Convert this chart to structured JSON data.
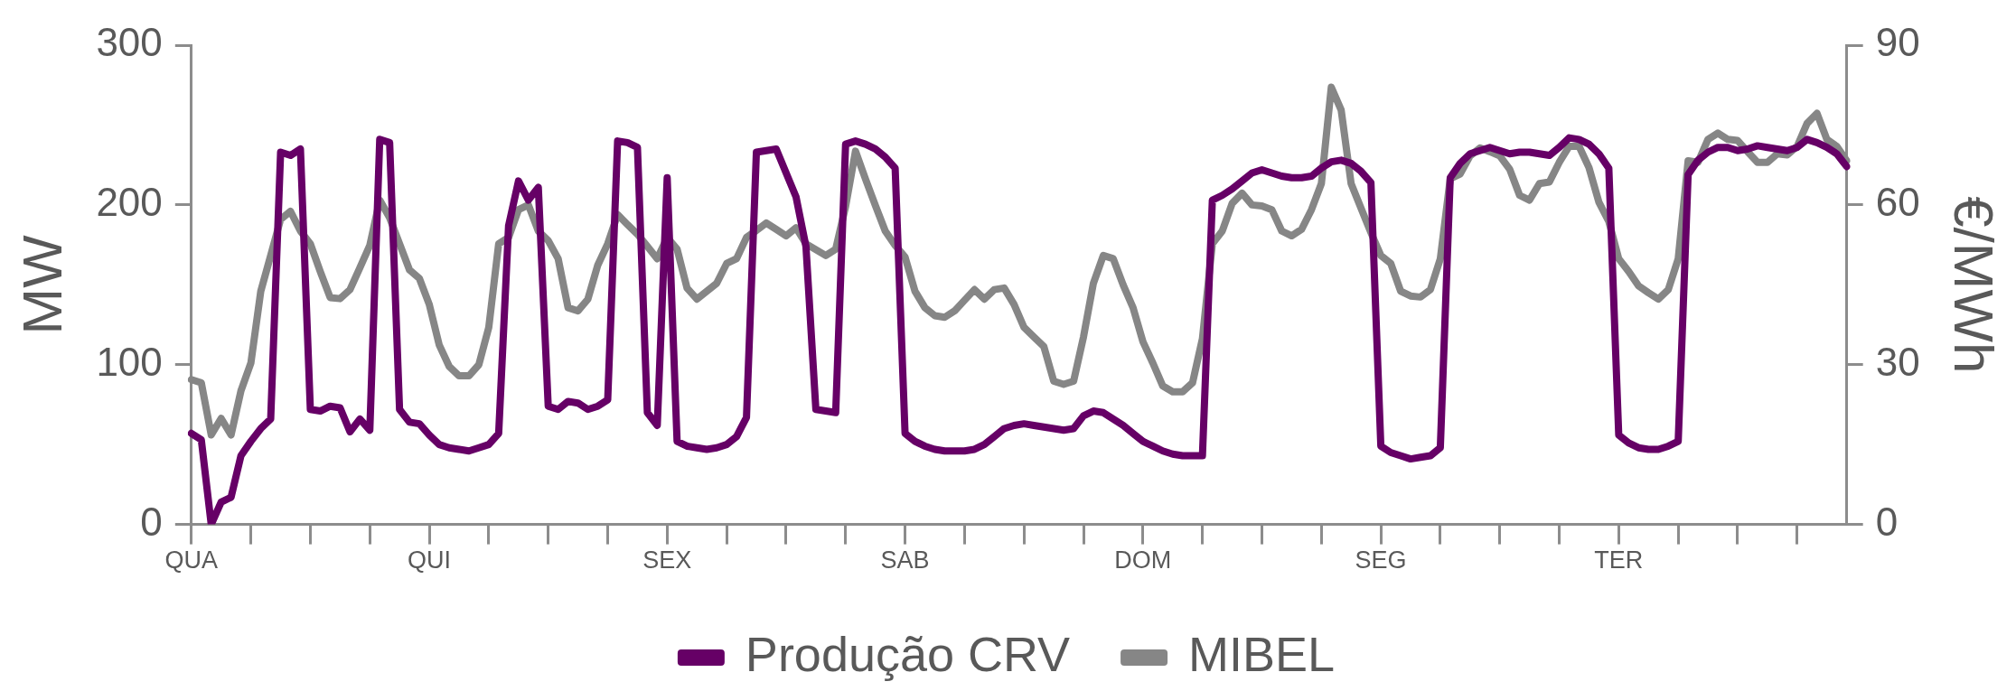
{
  "chart_data": {
    "type": "line",
    "ylabel": "MW",
    "y2label": "€/MWh",
    "legend": "bottom",
    "grid": false,
    "marker": "none",
    "line_style": "solid",
    "categories": [
      "QUA",
      null,
      null,
      null,
      null,
      null,
      null,
      null,
      null,
      null,
      null,
      null,
      null,
      null,
      null,
      null,
      null,
      null,
      null,
      null,
      null,
      null,
      null,
      null,
      "QUI",
      null,
      null,
      null,
      null,
      null,
      null,
      null,
      null,
      null,
      null,
      null,
      null,
      null,
      null,
      null,
      null,
      null,
      null,
      null,
      null,
      null,
      null,
      null,
      "SEX",
      null,
      null,
      null,
      null,
      null,
      null,
      null,
      null,
      null,
      null,
      null,
      null,
      null,
      null,
      null,
      null,
      null,
      null,
      null,
      null,
      null,
      null,
      null,
      "SAB",
      null,
      null,
      null,
      null,
      null,
      null,
      null,
      null,
      null,
      null,
      null,
      null,
      null,
      null,
      null,
      null,
      null,
      null,
      null,
      null,
      null,
      null,
      null,
      "DOM",
      null,
      null,
      null,
      null,
      null,
      null,
      null,
      null,
      null,
      null,
      null,
      null,
      null,
      null,
      null,
      null,
      null,
      null,
      null,
      null,
      null,
      null,
      null,
      "SEG",
      null,
      null,
      null,
      null,
      null,
      null,
      null,
      null,
      null,
      null,
      null,
      null,
      null,
      null,
      null,
      null,
      null,
      null,
      null,
      null,
      null,
      null,
      null,
      "TER",
      null,
      null,
      null,
      null,
      null,
      null,
      null,
      null,
      null,
      null,
      null,
      null,
      null,
      null,
      null,
      null,
      null,
      null,
      null,
      null,
      null,
      null,
      null
    ],
    "ylim": [
      0,
      300
    ],
    "yticks": [
      0,
      100,
      200,
      300
    ],
    "y2lim": [
      0,
      90
    ],
    "y2ticks": [
      0,
      30,
      60,
      90
    ],
    "series": [
      {
        "name": "Produção CRV",
        "color": "#660066",
        "values": [
          57,
          53,
          0,
          14,
          17,
          43,
          52,
          60,
          66,
          233,
          231,
          235,
          72,
          71,
          74,
          73,
          58,
          66,
          59,
          241,
          239,
          72,
          64,
          63,
          56,
          50,
          48,
          47,
          46,
          48,
          50,
          57,
          187,
          215,
          203,
          211,
          74,
          72,
          77,
          76,
          72,
          74,
          78,
          240,
          239,
          236,
          70,
          62,
          217,
          52,
          49,
          48,
          47,
          48,
          50,
          55,
          67,
          233,
          234,
          235,
          220,
          205,
          174,
          72,
          71,
          70,
          238,
          240,
          238,
          235,
          230,
          223,
          57,
          52,
          49,
          47,
          46,
          46,
          46,
          47,
          50,
          55,
          60,
          62,
          63,
          62,
          61,
          60,
          59,
          60,
          68,
          71,
          70,
          66,
          62,
          57,
          52,
          49,
          46,
          44,
          43,
          43,
          43,
          203,
          206,
          210,
          215,
          220,
          222,
          220,
          218,
          217,
          217,
          218,
          223,
          227,
          228,
          226,
          221,
          214,
          49,
          45,
          43,
          41,
          42,
          43,
          48,
          217,
          226,
          232,
          234,
          236,
          234,
          232,
          233,
          233,
          232,
          231,
          236,
          242,
          241,
          238,
          232,
          223,
          56,
          51,
          48,
          47,
          47,
          49,
          52,
          219,
          228,
          233,
          236,
          236,
          234,
          235,
          237,
          236,
          235,
          234,
          236,
          241,
          239,
          236,
          232,
          224
        ]
      },
      {
        "name": "MIBEL",
        "color": "#868686",
        "axis": "y2",
        "values": [
          27.2,
          26.6,
          16.8,
          19.9,
          16.8,
          25.1,
          30.3,
          43.8,
          50.5,
          57.3,
          58.8,
          55.1,
          52.7,
          47.5,
          42.6,
          42.4,
          44.1,
          48.2,
          52.4,
          60.9,
          57.6,
          52.7,
          47.8,
          46.2,
          41.3,
          33.7,
          29.7,
          27.9,
          27.9,
          30,
          37,
          52.7,
          53.9,
          59.1,
          60,
          55.1,
          53.3,
          49.9,
          40.7,
          40.1,
          42.3,
          48.7,
          52.7,
          58.2,
          56.3,
          54.5,
          52.2,
          49.9,
          53.9,
          51.7,
          44.4,
          42.3,
          43.8,
          45.3,
          49,
          49.9,
          53.9,
          55.2,
          56.6,
          55.4,
          54.2,
          55.7,
          52.7,
          51.6,
          50.5,
          51.7,
          59.7,
          70.1,
          64.9,
          59.9,
          55.1,
          52.4,
          50.2,
          43.8,
          40.7,
          39.2,
          38.9,
          40.1,
          42.1,
          44.1,
          42.3,
          44.1,
          44.4,
          41.3,
          37,
          35.2,
          33.4,
          26.9,
          26.3,
          26.9,
          35.2,
          45.3,
          50.5,
          49.9,
          45,
          40.7,
          34.3,
          30.3,
          26,
          24.9,
          24.9,
          26.6,
          34.9,
          52.7,
          55.1,
          60.3,
          62.2,
          60,
          59.8,
          59.1,
          55.1,
          54.2,
          55.4,
          59.1,
          64,
          82.1,
          77.8,
          64,
          59.4,
          54.8,
          50.5,
          49,
          43.8,
          42.9,
          42.7,
          44.1,
          49.9,
          64.9,
          65.8,
          69.2,
          70.7,
          70,
          69.2,
          66.7,
          61.8,
          60.9,
          64,
          64.3,
          68,
          71,
          71,
          67,
          60.5,
          56.9,
          49.9,
          47.5,
          44.8,
          43.5,
          42.3,
          44.1,
          49.9,
          68.3,
          68,
          72.3,
          73.5,
          72.3,
          72.1,
          70,
          68,
          68,
          69.6,
          69.4,
          71,
          75.3,
          77.2,
          72.3,
          71,
          68.3
        ]
      }
    ]
  }
}
